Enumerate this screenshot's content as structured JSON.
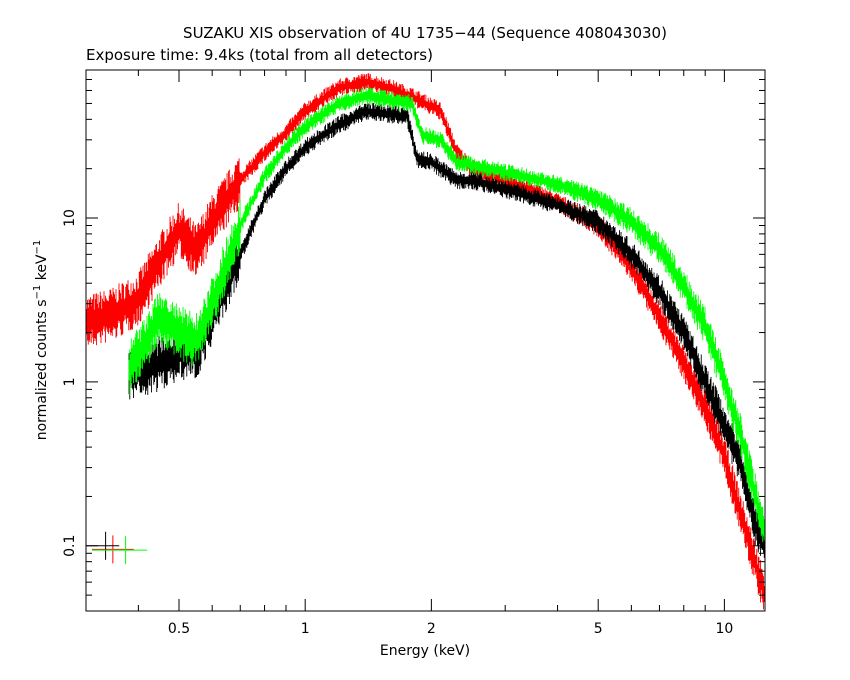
{
  "chart_data": {
    "type": "scatter",
    "title": "SUZAKU XIS observation of 4U 1735−44 (Sequence 408043030)",
    "subtitle": "Exposure time: 9.4ks (total from all detectors)",
    "xlabel": "Energy (keV)",
    "ylabel_main": "normalized counts s",
    "ylabel_exp1": "−1",
    "ylabel_unit": " keV",
    "ylabel_exp2": "−1",
    "xscale": "log",
    "yscale": "log",
    "xlim": [
      0.3,
      12.5
    ],
    "ylim": [
      0.04,
      80
    ],
    "x_ticks": [
      {
        "value": 0.5,
        "label": "0.5"
      },
      {
        "value": 1,
        "label": "1"
      },
      {
        "value": 2,
        "label": "2"
      },
      {
        "value": 5,
        "label": "5"
      },
      {
        "value": 10,
        "label": "10"
      }
    ],
    "y_ticks": [
      {
        "value": 0.1,
        "label": "0.1"
      },
      {
        "value": 1,
        "label": "1"
      },
      {
        "value": 10,
        "label": "10"
      }
    ],
    "grid": false,
    "series": [
      {
        "color": "#ff0000",
        "spectrum": [
          [
            0.3,
            2.3
          ],
          [
            0.35,
            2.6
          ],
          [
            0.4,
            3.2
          ],
          [
            0.45,
            5.5
          ],
          [
            0.5,
            8.5
          ],
          [
            0.55,
            6.2
          ],
          [
            0.6,
            9.5
          ],
          [
            0.7,
            17
          ],
          [
            0.8,
            25
          ],
          [
            0.9,
            33
          ],
          [
            1.0,
            45
          ],
          [
            1.2,
            62
          ],
          [
            1.4,
            68
          ],
          [
            1.6,
            62
          ],
          [
            1.8,
            55
          ],
          [
            2.1,
            45
          ],
          [
            2.3,
            25
          ],
          [
            2.5,
            20
          ],
          [
            3.0,
            17
          ],
          [
            3.5,
            14.5
          ],
          [
            4.0,
            12.5
          ],
          [
            5.0,
            9
          ],
          [
            6.0,
            5
          ],
          [
            7.0,
            2.5
          ],
          [
            8.0,
            1.3
          ],
          [
            9.0,
            0.7
          ],
          [
            10.0,
            0.35
          ],
          [
            11.0,
            0.15
          ],
          [
            12.0,
            0.07
          ],
          [
            12.5,
            0.05
          ]
        ],
        "error_bar": {
          "x": [
            0.31,
            0.39
          ],
          "y": 0.095
        }
      },
      {
        "color": "#000000",
        "spectrum": [
          [
            0.38,
            1.1
          ],
          [
            0.42,
            1.2
          ],
          [
            0.45,
            1.3
          ],
          [
            0.5,
            1.5
          ],
          [
            0.55,
            1.5
          ],
          [
            0.6,
            2.5
          ],
          [
            0.7,
            6
          ],
          [
            0.8,
            13
          ],
          [
            0.9,
            20
          ],
          [
            1.0,
            27
          ],
          [
            1.2,
            37
          ],
          [
            1.4,
            45
          ],
          [
            1.6,
            43
          ],
          [
            1.75,
            42
          ],
          [
            1.85,
            23
          ],
          [
            2.0,
            22
          ],
          [
            2.3,
            17
          ],
          [
            2.5,
            17
          ],
          [
            3.0,
            15
          ],
          [
            4.0,
            12
          ],
          [
            5.0,
            9.5
          ],
          [
            6.0,
            6
          ],
          [
            7.0,
            3.6
          ],
          [
            8.0,
            2
          ],
          [
            9.0,
            1
          ],
          [
            10.0,
            0.55
          ],
          [
            11.0,
            0.3
          ],
          [
            12.0,
            0.12
          ],
          [
            12.5,
            0.1
          ]
        ],
        "error_bar": {
          "x": [
            0.3,
            0.36
          ],
          "y": 0.1
        }
      },
      {
        "color": "#00ff00",
        "spectrum": [
          [
            0.38,
            1.2
          ],
          [
            0.42,
            1.8
          ],
          [
            0.45,
            2.5
          ],
          [
            0.5,
            2.0
          ],
          [
            0.55,
            1.8
          ],
          [
            0.6,
            3.0
          ],
          [
            0.7,
            9
          ],
          [
            0.8,
            18
          ],
          [
            0.9,
            27
          ],
          [
            1.0,
            36
          ],
          [
            1.2,
            50
          ],
          [
            1.4,
            56
          ],
          [
            1.6,
            52
          ],
          [
            1.8,
            50
          ],
          [
            1.9,
            32
          ],
          [
            2.1,
            30
          ],
          [
            2.3,
            22
          ],
          [
            2.5,
            21
          ],
          [
            3.0,
            19
          ],
          [
            4.0,
            16
          ],
          [
            5.0,
            13
          ],
          [
            6.0,
            9.5
          ],
          [
            7.0,
            6.5
          ],
          [
            8.0,
            3.8
          ],
          [
            9.0,
            2.2
          ],
          [
            10.0,
            1.0
          ],
          [
            11.0,
            0.45
          ],
          [
            12.0,
            0.18
          ],
          [
            12.5,
            0.12
          ]
        ],
        "error_bar": {
          "x": [
            0.31,
            0.42
          ],
          "y": 0.094
        }
      }
    ]
  }
}
